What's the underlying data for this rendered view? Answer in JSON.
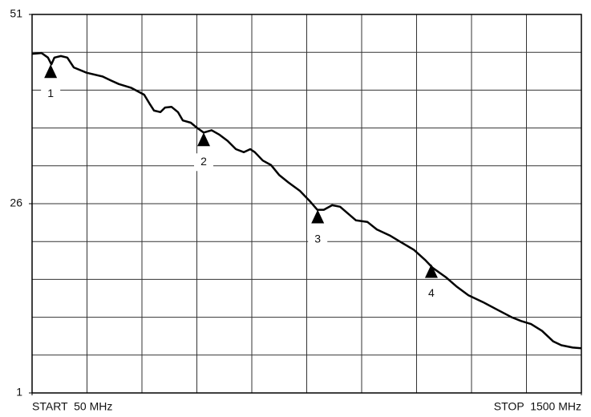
{
  "chart_data": {
    "type": "line",
    "xlim": [
      50,
      1500
    ],
    "xticks": [
      {
        "value": 50,
        "label": "START  50 MHz"
      },
      {
        "value": 1500,
        "label": "STOP  1500 MHz"
      }
    ],
    "ylim": [
      1,
      51
    ],
    "yticks": [
      1,
      26,
      51
    ],
    "grid": true,
    "grid_divisions": 10,
    "color": "#000000",
    "x": [
      50,
      75,
      92,
      101,
      109,
      126,
      143,
      160,
      194,
      236,
      257,
      279,
      312,
      346,
      359,
      372,
      389,
      401,
      418,
      435,
      448,
      469,
      486,
      503,
      524,
      545,
      566,
      588,
      609,
      626,
      638,
      659,
      681,
      702,
      727,
      757,
      782,
      803,
      820,
      842,
      863,
      884,
      905,
      935,
      960,
      994,
      1024,
      1058,
      1087,
      1108,
      1142,
      1172,
      1202,
      1240,
      1278,
      1316,
      1341,
      1367,
      1396,
      1426,
      1447,
      1477,
      1500
    ],
    "values": [
      45.8,
      45.9,
      45.3,
      44.4,
      45.3,
      45.5,
      45.3,
      44.0,
      43.3,
      42.8,
      42.3,
      41.8,
      41.3,
      40.4,
      39.3,
      38.3,
      38.1,
      38.7,
      38.8,
      38.1,
      37.0,
      36.7,
      36.0,
      35.4,
      35.7,
      35.1,
      34.3,
      33.2,
      32.8,
      33.2,
      32.8,
      31.7,
      31.1,
      29.8,
      28.8,
      27.7,
      26.4,
      25.2,
      25.2,
      25.8,
      25.6,
      24.7,
      23.8,
      23.6,
      22.6,
      21.8,
      20.9,
      19.9,
      18.6,
      17.5,
      16.3,
      15.0,
      13.9,
      13.0,
      12.0,
      11.0,
      10.5,
      10.1,
      9.2,
      7.8,
      7.3,
      7.0,
      6.9
    ],
    "markers": [
      {
        "label": "1",
        "x": 99,
        "y": 44.4
      },
      {
        "label": "2",
        "x": 503,
        "y": 35.4
      },
      {
        "label": "3",
        "x": 804,
        "y": 25.2
      },
      {
        "label": "4",
        "x": 1104,
        "y": 18.0
      }
    ]
  }
}
